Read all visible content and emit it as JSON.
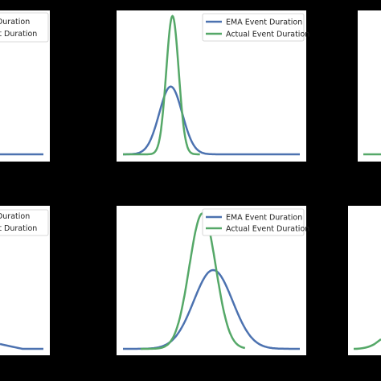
{
  "colors": {
    "background": "#000000",
    "panel": "#ffffff",
    "ema": "#4c72b0",
    "actual": "#55a868"
  },
  "legend_labels": {
    "ema": "EMA Event Duration",
    "actual": "Actual Event Duration"
  },
  "chart_data": [
    {
      "type": "line",
      "position": "top-left (partially cropped)",
      "legend": "top-right",
      "grid": false,
      "series": [
        {
          "name": "EMA Event Duration",
          "x": [
            0,
            0.2,
            0.4,
            0.6,
            0.8,
            1.0
          ],
          "y": [
            0.02,
            0.02,
            0.02,
            0.02,
            0.02,
            0.02
          ]
        },
        {
          "name": "Actual Event Duration",
          "x": [],
          "y": []
        }
      ]
    },
    {
      "type": "line",
      "position": "top-center",
      "legend": "top-right",
      "grid": false,
      "series": [
        {
          "name": "EMA Event Duration",
          "mean": 0.27,
          "sd": 0.065,
          "peak": 0.49
        },
        {
          "name": "Actual Event Duration",
          "mean": 0.28,
          "sd": 0.035,
          "peak": 1.0
        }
      ]
    },
    {
      "type": "line",
      "position": "top-right (cropped)",
      "legend": "top-right",
      "grid": false,
      "series": []
    },
    {
      "type": "line",
      "position": "bottom-left (partially cropped)",
      "legend": "top-right",
      "grid": false,
      "series": [
        {
          "name": "EMA Event Duration",
          "x": [
            0.9,
            1.0
          ],
          "y": [
            0.02,
            0.02
          ]
        },
        {
          "name": "Actual Event Duration",
          "x": [],
          "y": []
        }
      ]
    },
    {
      "type": "line",
      "position": "bottom-center",
      "legend": "top-right",
      "grid": false,
      "series": [
        {
          "name": "EMA Event Duration",
          "mean": 0.51,
          "sd": 0.11,
          "peak": 0.57
        },
        {
          "name": "Actual Event Duration",
          "mean": 0.45,
          "sd": 0.075,
          "peak": 0.98
        }
      ]
    },
    {
      "type": "line",
      "position": "bottom-right (cropped)",
      "legend": "top-right",
      "grid": false,
      "series": []
    }
  ]
}
